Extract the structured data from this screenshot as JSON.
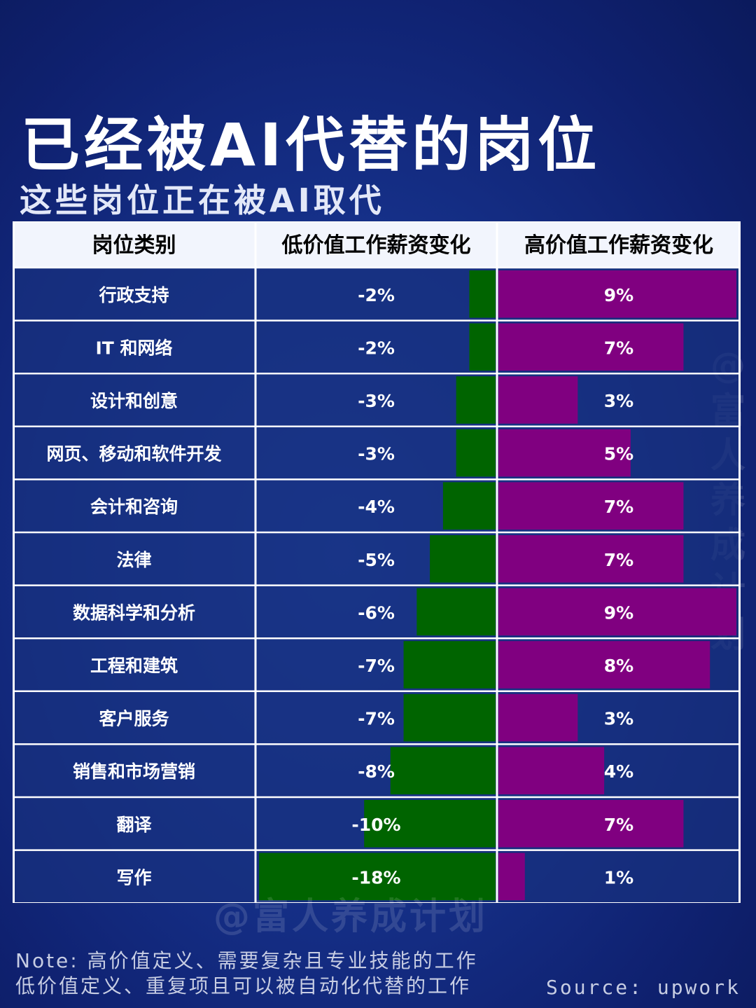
{
  "title": "已经被AI代替的岗位",
  "subtitle": "这些岗位正在被AI取代",
  "watermark": "@富人养成计划",
  "note_line1": "Note: 高价值定义、需要复杂且专业技能的工作",
  "note_line2": "低价值定义、重复项且可以被自动化代替的工作",
  "source": "Source: upwork",
  "colors": {
    "header_bg": "#f2f5fd",
    "row_bg": "#18307e",
    "grid": "#ffffff",
    "low_bar": "#006400",
    "high_bar": "#800080"
  },
  "chart_data": {
    "type": "table",
    "columns": [
      "岗位类别",
      "低价值工作薪资变化",
      "高价值工作薪资变化"
    ],
    "rows": [
      {
        "category": "行政支持",
        "low": -2,
        "high": 9
      },
      {
        "category": "IT 和网络",
        "low": -2,
        "high": 7
      },
      {
        "category": "设计和创意",
        "low": -3,
        "high": 3
      },
      {
        "category": "网页、移动和软件开发",
        "low": -3,
        "high": 5
      },
      {
        "category": "会计和咨询",
        "low": -4,
        "high": 7
      },
      {
        "category": "法律",
        "low": -5,
        "high": 7
      },
      {
        "category": "数据科学和分析",
        "low": -6,
        "high": 9
      },
      {
        "category": "工程和建筑",
        "low": -7,
        "high": 8
      },
      {
        "category": "客户服务",
        "low": -7,
        "high": 3
      },
      {
        "category": "销售和市场营销",
        "low": -8,
        "high": 4
      },
      {
        "category": "翻译",
        "low": -10,
        "high": 7
      },
      {
        "category": "写作",
        "low": -18,
        "high": 1
      }
    ],
    "low_range": [
      -18,
      0
    ],
    "high_range": [
      0,
      9
    ],
    "value_suffix": "%"
  }
}
